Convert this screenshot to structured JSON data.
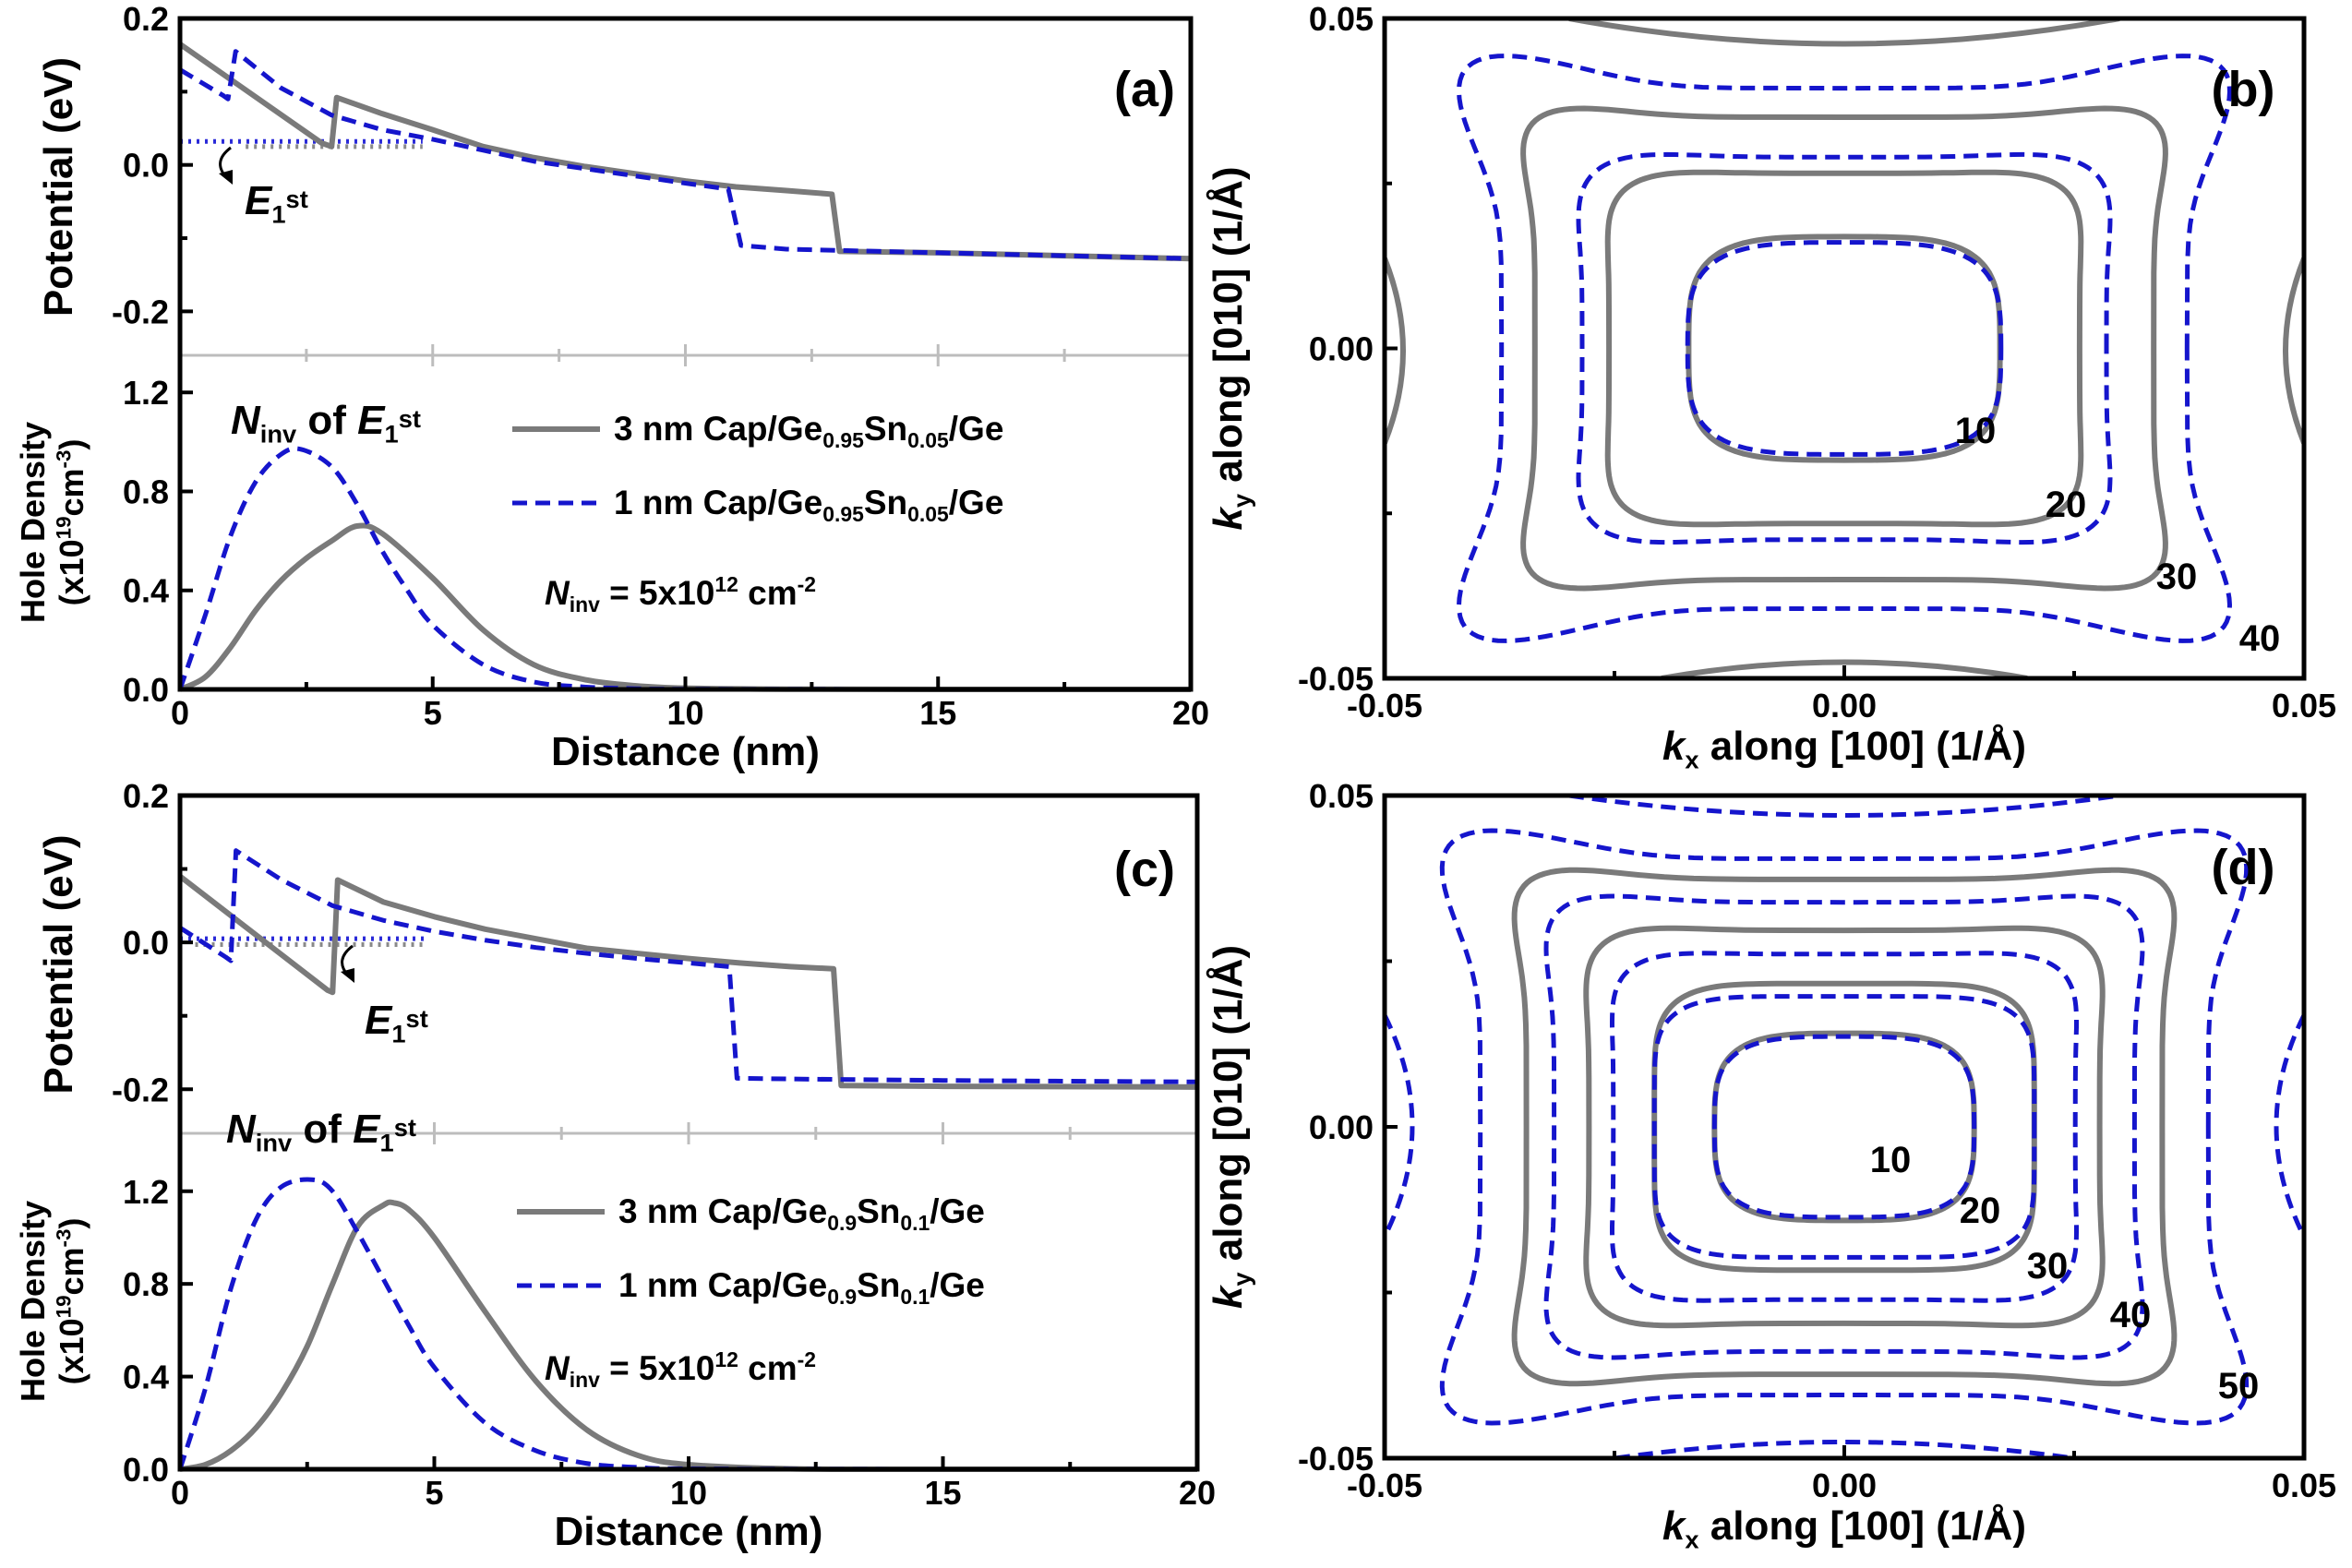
{
  "colors": {
    "gray_line": "#7a7a7a",
    "blue_line": "#1515cc",
    "axis": "#000000",
    "separator": "#bdbdbd"
  },
  "chart_data": [
    {
      "panel": "(a)",
      "type": "line",
      "upper": {
        "ylabel": "Potential (eV)",
        "ylim": [
          -0.26,
          0.2
        ],
        "yticks": [
          "0.2",
          "0.0",
          "-0.2"
        ],
        "series": [
          {
            "name": "3 nm Cap/Ge0.95Sn0.05/Ge",
            "style": "solid-gray",
            "x": [
              0,
              2.8,
              3.0,
              3.1,
              4,
              5,
              6,
              7,
              8,
              9,
              10,
              11,
              12,
              12.9,
              13.05,
              15,
              20
            ],
            "y": [
              0.165,
              0.03,
              0.025,
              0.092,
              0.07,
              0.048,
              0.025,
              0.01,
              -0.002,
              -0.012,
              -0.022,
              -0.03,
              -0.035,
              -0.04,
              -0.118,
              -0.12,
              -0.128
            ]
          },
          {
            "name": "1 nm Cap/Ge0.95Sn0.05/Ge",
            "style": "dashed-blue",
            "x": [
              0,
              0.85,
              0.95,
              1.1,
              2,
              3,
              4,
              5,
              6,
              7,
              8,
              9,
              10,
              10.85,
              11.1,
              12,
              15,
              20
            ],
            "y": [
              0.13,
              0.095,
              0.09,
              0.155,
              0.105,
              0.068,
              0.048,
              0.035,
              0.02,
              0.005,
              -0.005,
              -0.015,
              -0.025,
              -0.033,
              -0.11,
              -0.115,
              -0.12,
              -0.128
            ]
          }
        ],
        "levels": [
          {
            "name": "E1st 1 nm",
            "y": 0.032,
            "x": [
              0,
              4.8
            ],
            "style": "dotted-blue"
          },
          {
            "name": "E1st 3 nm",
            "y": 0.025,
            "x": [
              1.3,
              4.8
            ],
            "style": "dotted-gray"
          }
        ],
        "annotation": {
          "text": "E",
          "subscript": "1",
          "superscript": "st"
        }
      },
      "lower": {
        "ylabel": "Hole Density",
        "ylabel2": "(x10",
        "ylabel2_sup": "19",
        "ylabel2_rest": "cm",
        "ylabel2_unit_sup": "-3",
        "ylabel2_close": ")",
        "ylim": [
          0,
          1.35
        ],
        "yticks": [
          "0.0",
          "0.4",
          "0.8",
          "1.2"
        ],
        "series": [
          {
            "name": "3 nm Cap/Ge0.95Sn0.05/Ge",
            "x": [
              0,
              0.5,
              1,
              1.5,
              2,
              2.5,
              3,
              3.5,
              4,
              5,
              6,
              7,
              8,
              9,
              10,
              12,
              15,
              20
            ],
            "y": [
              0,
              0.05,
              0.17,
              0.32,
              0.44,
              0.53,
              0.6,
              0.66,
              0.63,
              0.45,
              0.24,
              0.1,
              0.04,
              0.015,
              0.005,
              0.001,
              0,
              0
            ]
          },
          {
            "name": "1 nm Cap/Ge0.95Sn0.05/Ge",
            "x": [
              0,
              0.5,
              1,
              1.5,
              2,
              2.4,
              3,
              3.5,
              4,
              4.5,
              5,
              6,
              7,
              8,
              9,
              10,
              15,
              20
            ],
            "y": [
              0,
              0.3,
              0.62,
              0.84,
              0.95,
              0.97,
              0.9,
              0.75,
              0.56,
              0.4,
              0.26,
              0.1,
              0.03,
              0.01,
              0.003,
              0.001,
              0,
              0
            ]
          }
        ]
      },
      "xlabel": "Distance (nm)",
      "xticks": [
        "0",
        "5",
        "10",
        "15",
        "20"
      ],
      "xlim": [
        0,
        20
      ],
      "ninv_label": {
        "N": "N",
        "sub": "inv",
        "of": "of",
        "E": "E",
        "E_sub": "1",
        "E_sup": "st"
      },
      "legend": [
        {
          "pre": "3 nm Cap/Ge",
          "s1": "0.95",
          "mid": "Sn",
          "s2": "0.05",
          "post": "/Ge"
        },
        {
          "pre": "1 nm Cap/Ge",
          "s1": "0.95",
          "mid": "Sn",
          "s2": "0.05",
          "post": "/Ge"
        }
      ],
      "ninv_value": {
        "N": "N",
        "sub": "inv",
        "eq": " = 5x10",
        "exp": "12",
        "unit": " cm",
        "unit_exp": "-2"
      }
    },
    {
      "panel": "(b)",
      "type": "contour",
      "xlabel": {
        "k": "k",
        "sub": "x",
        "rest": " along [100] (1/Å)"
      },
      "ylabel": {
        "k": "k",
        "sub": "y",
        "rest": " along [010] (1/Å)"
      },
      "xlim": [
        -0.05,
        0.05
      ],
      "ylim": [
        -0.05,
        0.05
      ],
      "xticks": [
        "-0.05",
        "0.00",
        "0.05"
      ],
      "yticks": [
        "0.05",
        "0.00",
        "-0.05"
      ],
      "contour_labels": [
        "10",
        "20",
        "30",
        "40"
      ],
      "gray_contours": [
        {
          "a": 0.0175,
          "b": 0.0175,
          "n": 3.0,
          "w": 0.05
        },
        {
          "a": 0.027,
          "b": 0.028,
          "n": 4.5,
          "w": 0.08
        },
        {
          "a": 0.0365,
          "b": 0.038,
          "n": 6,
          "w": 0.12
        }
      ],
      "blue_contours": [
        {
          "a": 0.0175,
          "b": 0.0165,
          "n": 3.0,
          "w": 0.04
        },
        {
          "a": 0.0305,
          "b": 0.031,
          "n": 4.5,
          "w": 0.1
        },
        {
          "a": 0.0435,
          "b": 0.046,
          "n": 6,
          "w": 0.22
        }
      ]
    },
    {
      "panel": "(c)",
      "type": "line",
      "upper": {
        "ylabel": "Potential (eV)",
        "ylim": [
          -0.26,
          0.2
        ],
        "yticks": [
          "0.2",
          "0.0",
          "-0.2"
        ],
        "series": [
          {
            "name": "3 nm Cap/Ge0.9Sn0.1/Ge",
            "style": "solid-gray",
            "x": [
              0,
              2.9,
              3.0,
              3.1,
              4,
              5,
              6,
              7,
              8,
              9,
              10,
              11,
              12,
              12.85,
              13.0,
              15,
              20
            ],
            "y": [
              0.09,
              -0.065,
              -0.068,
              0.085,
              0.055,
              0.035,
              0.018,
              0.005,
              -0.008,
              -0.015,
              -0.022,
              -0.028,
              -0.033,
              -0.036,
              -0.195,
              -0.196,
              -0.197
            ]
          },
          {
            "name": "1 nm Cap/Ge0.9Sn0.1/Ge",
            "style": "dashed-blue",
            "x": [
              0,
              0.9,
              1.0,
              1.1,
              2,
              3,
              4,
              5,
              6,
              7,
              8,
              9,
              10,
              10.8,
              10.95,
              12,
              15,
              20
            ],
            "y": [
              0.02,
              -0.02,
              -0.025,
              0.125,
              0.085,
              0.05,
              0.03,
              0.015,
              0.003,
              -0.007,
              -0.015,
              -0.022,
              -0.028,
              -0.033,
              -0.185,
              -0.186,
              -0.188,
              -0.19
            ]
          }
        ],
        "levels": [
          {
            "name": "E1st 1 nm",
            "y": 0.005,
            "x": [
              0,
              4.8
            ],
            "style": "dotted-blue"
          },
          {
            "name": "E1st 3 nm",
            "y": -0.003,
            "x": [
              0.3,
              4.8
            ],
            "style": "dotted-gray"
          }
        ],
        "annotation": {
          "text": "E",
          "subscript": "1",
          "superscript": "st"
        }
      },
      "lower": {
        "ylabel": "Hole Density",
        "ylabel2": "(x10",
        "ylabel2_sup": "19",
        "ylabel2_rest": "cm",
        "ylabel2_unit_sup": "-3",
        "ylabel2_close": ")",
        "ylim": [
          0,
          1.45
        ],
        "yticks": [
          "0.0",
          "0.4",
          "0.8",
          "1.2"
        ],
        "series": [
          {
            "name": "3 nm Cap/Ge0.9Sn0.1/Ge",
            "x": [
              0,
              0.5,
              1,
              1.5,
              2,
              2.5,
              3,
              3.5,
              4,
              4.2,
              4.5,
              5,
              6,
              7,
              8,
              9,
              10,
              12,
              15,
              20
            ],
            "y": [
              0,
              0.02,
              0.08,
              0.18,
              0.33,
              0.53,
              0.8,
              1.05,
              1.14,
              1.15,
              1.12,
              1.0,
              0.68,
              0.38,
              0.17,
              0.06,
              0.02,
              0.002,
              0,
              0
            ]
          },
          {
            "name": "1 nm Cap/Ge0.9Sn0.1/Ge",
            "x": [
              0,
              0.5,
              1,
              1.5,
              2,
              2.6,
              3,
              3.5,
              4,
              4.5,
              5,
              6,
              7,
              8,
              9,
              10,
              15,
              20
            ],
            "y": [
              0,
              0.35,
              0.78,
              1.08,
              1.22,
              1.25,
              1.2,
              1.02,
              0.82,
              0.62,
              0.44,
              0.2,
              0.08,
              0.025,
              0.008,
              0.002,
              0,
              0
            ]
          }
        ]
      },
      "xlabel": "Distance (nm)",
      "xticks": [
        "0",
        "5",
        "10",
        "15",
        "20"
      ],
      "xlim": [
        0,
        20
      ],
      "ninv_label": {
        "N": "N",
        "sub": "inv",
        "of": "of",
        "E": "E",
        "E_sub": "1",
        "E_sup": "st"
      },
      "legend": [
        {
          "pre": "3 nm Cap/Ge",
          "s1": "0.9",
          "mid": "Sn",
          "s2": "0.1",
          "post": "/Ge"
        },
        {
          "pre": "1 nm Cap/Ge",
          "s1": "0.9",
          "mid": "Sn",
          "s2": "0.1",
          "post": "/Ge"
        }
      ],
      "ninv_value": {
        "N": "N",
        "sub": "inv",
        "eq": " = 5x10",
        "exp": "12",
        "unit": " cm",
        "unit_exp": "-2"
      }
    },
    {
      "panel": "(d)",
      "type": "contour",
      "xlabel": {
        "k": "k",
        "sub": "x",
        "rest": " along [100] (1/Å)"
      },
      "ylabel": {
        "k": "k",
        "sub": "y",
        "rest": " along [010] (1/Å)"
      },
      "xlim": [
        -0.05,
        0.05
      ],
      "ylim": [
        -0.05,
        0.05
      ],
      "xticks": [
        "-0.05",
        "0.00",
        "0.05"
      ],
      "yticks": [
        "0.05",
        "0.00",
        "-0.05"
      ],
      "contour_labels": [
        "10",
        "20",
        "30",
        "40",
        "50"
      ],
      "gray_contours": [
        {
          "a": 0.0145,
          "b": 0.0145,
          "n": 3.0,
          "w": 0.04
        },
        {
          "a": 0.0215,
          "b": 0.0225,
          "n": 3.8,
          "w": 0.06
        },
        {
          "a": 0.0295,
          "b": 0.0315,
          "n": 4.8,
          "w": 0.09
        },
        {
          "a": 0.0375,
          "b": 0.0405,
          "n": 6,
          "w": 0.12
        }
      ],
      "blue_contours": [
        {
          "a": 0.0145,
          "b": 0.014,
          "n": 3.0,
          "w": 0.04
        },
        {
          "a": 0.0215,
          "b": 0.0205,
          "n": 3.8,
          "w": 0.06
        },
        {
          "a": 0.0265,
          "b": 0.0275,
          "n": 4.5,
          "w": 0.08
        },
        {
          "a": 0.034,
          "b": 0.0365,
          "n": 5.5,
          "w": 0.11
        },
        {
          "a": 0.0455,
          "b": 0.0465,
          "n": 6,
          "w": 0.2
        }
      ]
    }
  ]
}
